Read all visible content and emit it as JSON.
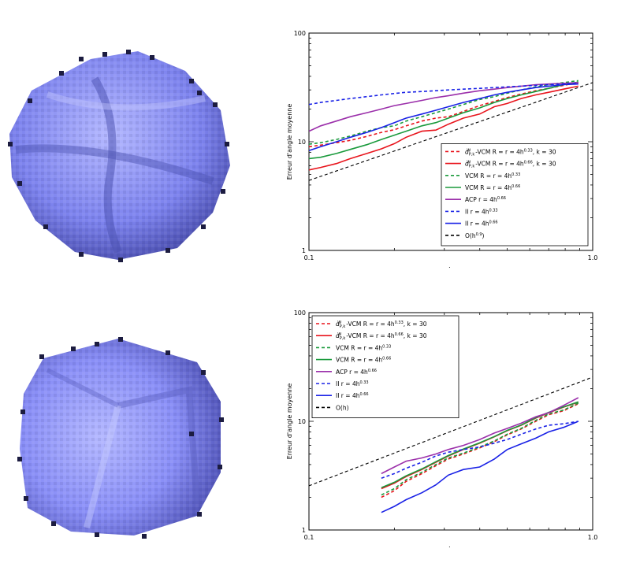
{
  "figure": {
    "description_panels": 4
  },
  "chart_data": [
    {
      "type": "line",
      "xscale": "log",
      "yscale": "log",
      "xlim": [
        0.1,
        1.0
      ],
      "ylim": [
        1,
        100
      ],
      "xticks": [
        "0.1",
        "1.0"
      ],
      "yticks": [
        "1",
        "10",
        "100"
      ],
      "xlabel": "h",
      "ylabel": "Erreur d'angle moyenne",
      "legend_position": "lower-right",
      "grid": false,
      "x": [
        0.1,
        0.11,
        0.125,
        0.14,
        0.16,
        0.18,
        0.2,
        0.22,
        0.25,
        0.28,
        0.31,
        0.35,
        0.4,
        0.45,
        0.5,
        0.56,
        0.63,
        0.7,
        0.79,
        0.89
      ],
      "series": [
        {
          "name": "dPk-VCM R=r=4h^0.33, k=30",
          "color": "#e8141c",
          "dash": true,
          "values": [
            9.0,
            9.3,
            9.8,
            10.3,
            11.2,
            12.2,
            12.9,
            14.0,
            15.5,
            16.5,
            17.0,
            19.0,
            21.5,
            23.5,
            25.5,
            27.5,
            29.5,
            31.0,
            33.0,
            35.0
          ]
        },
        {
          "name": "dPk-VCM R=r=4h^0.66, k=30",
          "color": "#e8141c",
          "dash": false,
          "values": [
            5.5,
            5.8,
            6.3,
            7.0,
            7.8,
            8.6,
            9.6,
            11.0,
            12.5,
            12.8,
            14.5,
            16.5,
            18.0,
            21.0,
            22.5,
            25.0,
            27.0,
            28.5,
            30.5,
            32.5
          ]
        },
        {
          "name": "VCM R=r=4h^0.33",
          "color": "#1a9a3c",
          "dash": true,
          "values": [
            9.5,
            9.8,
            10.5,
            11.3,
            12.5,
            13.5,
            14.0,
            15.5,
            17.0,
            18.5,
            20.0,
            22.0,
            24.5,
            26.0,
            28.0,
            30.0,
            32.0,
            33.5,
            35.0,
            36.5
          ]
        },
        {
          "name": "VCM R=r=4h^0.66",
          "color": "#1a9a3c",
          "dash": false,
          "values": [
            7.0,
            7.2,
            7.8,
            8.5,
            9.4,
            10.5,
            11.5,
            12.5,
            14.0,
            15.0,
            16.5,
            18.5,
            20.5,
            23.0,
            25.0,
            27.0,
            29.0,
            31.0,
            33.5,
            35.5
          ]
        },
        {
          "name": "ACP r=4h^0.66",
          "color": "#9b2faa",
          "dash": false,
          "values": [
            12.5,
            14.0,
            15.5,
            17.0,
            18.5,
            20.0,
            21.5,
            22.5,
            24.0,
            25.5,
            26.5,
            28.0,
            29.5,
            30.5,
            31.5,
            32.5,
            33.5,
            34.0,
            34.5,
            35.0
          ]
        },
        {
          "name": "II r=4h^0.33",
          "color": "#1a22e6",
          "dash": true,
          "values": [
            22.0,
            23.0,
            24.0,
            25.0,
            26.0,
            27.0,
            27.8,
            28.5,
            29.0,
            29.5,
            30.0,
            30.5,
            31.0,
            31.5,
            32.0,
            32.5,
            33.0,
            33.5,
            34.0,
            34.5
          ]
        },
        {
          "name": "II r=4h^0.66",
          "color": "#1a22e6",
          "dash": false,
          "values": [
            8.3,
            9.0,
            10.0,
            11.0,
            12.2,
            13.5,
            15.0,
            16.5,
            18.0,
            19.5,
            21.0,
            23.0,
            25.0,
            27.0,
            28.5,
            30.0,
            31.5,
            32.5,
            33.5,
            34.0
          ]
        },
        {
          "name": "O(h^0.9)",
          "color": "#000000",
          "dash": true,
          "reference": true,
          "values_fn": {
            "coef": 35.0,
            "exp": 0.9
          }
        }
      ]
    },
    {
      "type": "line",
      "xscale": "log",
      "yscale": "log",
      "xlim": [
        0.1,
        1.0
      ],
      "ylim": [
        1,
        100
      ],
      "xticks": [
        "0.1",
        "1.0"
      ],
      "yticks": [
        "1",
        "10",
        "100"
      ],
      "xlabel": "h",
      "ylabel": "Erreur d'angle moyenne",
      "legend_position": "top-left",
      "grid": false,
      "x": [
        0.18,
        0.2,
        0.22,
        0.25,
        0.28,
        0.31,
        0.35,
        0.4,
        0.45,
        0.5,
        0.56,
        0.63,
        0.7,
        0.79,
        0.89
      ],
      "series": [
        {
          "name": "dPk-VCM R=r=4h^0.33, k=30",
          "color": "#e8141c",
          "dash": true,
          "values": [
            2.0,
            2.3,
            2.8,
            3.3,
            3.9,
            4.5,
            5.0,
            5.7,
            6.5,
            7.5,
            8.5,
            10.0,
            11.5,
            12.5,
            14.5
          ]
        },
        {
          "name": "dPk-VCM R=r=4h^0.66, k=30",
          "color": "#e8141c",
          "dash": false,
          "values": [
            2.4,
            2.7,
            3.1,
            3.6,
            4.2,
            4.8,
            5.5,
            6.3,
            7.2,
            8.2,
            9.2,
            10.7,
            12.0,
            13.5,
            15.0
          ]
        },
        {
          "name": "VCM R=r=4h^0.33",
          "color": "#1a9a3c",
          "dash": true,
          "values": [
            2.1,
            2.4,
            2.9,
            3.4,
            4.0,
            4.6,
            5.1,
            5.8,
            6.6,
            7.6,
            8.6,
            10.2,
            11.7,
            12.7,
            14.7
          ]
        },
        {
          "name": "VCM R=r=4h^0.66",
          "color": "#1a9a3c",
          "dash": false,
          "values": [
            2.45,
            2.75,
            3.15,
            3.65,
            4.25,
            4.85,
            5.55,
            6.35,
            7.25,
            8.25,
            9.25,
            10.8,
            12.1,
            13.6,
            15.1
          ]
        },
        {
          "name": "ACP r=4h^0.66",
          "color": "#9b2faa",
          "dash": false,
          "values": [
            3.3,
            3.8,
            4.3,
            4.6,
            5.0,
            5.5,
            6.0,
            6.8,
            7.8,
            8.6,
            9.6,
            11.0,
            12.0,
            14.0,
            16.5
          ]
        },
        {
          "name": "II r=4h^0.33",
          "color": "#1a22e6",
          "dash": true,
          "values": [
            3.0,
            3.3,
            3.7,
            4.2,
            4.8,
            5.2,
            5.5,
            5.8,
            6.3,
            6.8,
            7.6,
            8.5,
            9.2,
            9.5,
            10.0
          ]
        },
        {
          "name": "II r=4h^0.66",
          "color": "#1a22e6",
          "dash": false,
          "values": [
            1.45,
            1.65,
            1.9,
            2.2,
            2.6,
            3.2,
            3.6,
            3.8,
            4.5,
            5.5,
            6.2,
            7.0,
            8.0,
            8.8,
            10.0
          ]
        },
        {
          "name": "O(h)",
          "color": "#000000",
          "dash": true,
          "reference": true,
          "values_fn": {
            "coef": 25.5,
            "exp": 1.0
          }
        }
      ]
    }
  ],
  "legend_labels": {
    "top": [
      [
        "d",
        "P,k",
        "W",
        "-VCM R = r = 4h",
        "0.33",
        ", k = 30"
      ],
      [
        "d",
        "P,k",
        "W",
        "-VCM R = r = 4h",
        "0.66",
        ", k = 30"
      ],
      [
        "",
        "",
        "",
        "VCM R = r = 4h",
        "0.33",
        ""
      ],
      [
        "",
        "",
        "",
        "VCM R = r = 4h",
        "0.66",
        ""
      ],
      [
        "",
        "",
        "",
        "ACP r = 4h",
        "0.66",
        ""
      ],
      [
        "",
        "",
        "",
        "II r = 4h",
        "0.33",
        ""
      ],
      [
        "",
        "",
        "",
        "II r = 4h",
        "0.66",
        ""
      ],
      [
        "",
        "",
        "",
        "O(h",
        "0.9",
        ")"
      ]
    ],
    "bottom": [
      [
        "d",
        "P,k",
        "W",
        "-VCM R = r = 4h",
        "0.33",
        ", k = 30"
      ],
      [
        "d",
        "P,k",
        "W",
        "-VCM R = r = 4h",
        "0.66",
        ", k = 30"
      ],
      [
        "",
        "",
        "",
        "VCM R = r = 4h",
        "0.33",
        ""
      ],
      [
        "",
        "",
        "",
        "VCM R = r = 4h",
        "0.66",
        ""
      ],
      [
        "",
        "",
        "",
        "ACP r = 4h",
        "0.66",
        ""
      ],
      [
        "",
        "",
        "",
        "II r = 4h",
        "0.33",
        ""
      ],
      [
        "",
        "",
        "",
        "II r = 4h",
        "0.66",
        ""
      ],
      [
        "",
        "",
        "",
        "O(h)",
        "",
        ""
      ]
    ]
  },
  "shapes": {
    "fill_color": "#8a8ff7",
    "dark_color": "#1c1c40",
    "light_color": "#b4b8ff"
  }
}
